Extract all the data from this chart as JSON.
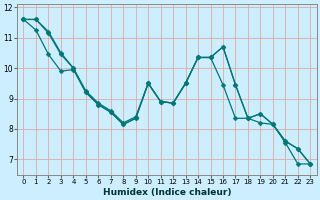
{
  "xlabel": "Humidex (Indice chaleur)",
  "bg_color": "#cceeff",
  "grid_color": "#aaddcc",
  "line_color": "#007777",
  "markersize": 2.5,
  "linewidth": 0.9,
  "xlim": [
    -0.5,
    23.5
  ],
  "ylim": [
    6.5,
    12.1
  ],
  "yticks": [
    7,
    8,
    9,
    10,
    11,
    12
  ],
  "xticks": [
    0,
    1,
    2,
    3,
    4,
    5,
    6,
    7,
    8,
    9,
    10,
    11,
    12,
    13,
    14,
    15,
    16,
    17,
    18,
    19,
    20,
    21,
    22,
    23
  ],
  "line1_x": [
    0,
    1,
    2,
    3,
    4,
    5,
    6,
    7,
    8,
    9,
    10,
    11,
    12,
    13,
    14,
    15,
    16,
    17,
    18,
    19,
    20,
    21,
    22,
    23
  ],
  "line1_y": [
    11.6,
    11.6,
    11.15,
    10.45,
    10.0,
    9.2,
    8.8,
    8.55,
    8.15,
    8.35,
    9.5,
    8.9,
    8.85,
    9.5,
    10.35,
    10.35,
    10.7,
    9.45,
    8.35,
    8.5,
    8.15,
    7.6,
    7.35,
    6.85
  ],
  "line2_x": [
    0,
    1,
    2,
    3,
    4,
    5,
    6,
    7,
    8,
    9,
    10,
    11,
    12,
    13,
    14,
    15,
    16,
    17,
    18,
    19,
    20,
    21,
    22,
    23
  ],
  "line2_y": [
    11.6,
    11.6,
    11.2,
    10.5,
    10.0,
    9.25,
    8.85,
    8.6,
    8.2,
    8.4,
    9.5,
    8.9,
    8.85,
    9.5,
    10.35,
    10.35,
    10.7,
    9.45,
    8.35,
    8.5,
    8.15,
    7.6,
    7.35,
    6.85
  ],
  "line3_x": [
    0,
    1,
    2,
    3,
    4,
    5,
    6,
    7,
    8,
    9,
    10,
    11,
    12,
    13,
    14,
    15,
    16,
    17,
    18,
    19,
    20,
    21,
    22,
    23
  ],
  "line3_y": [
    11.6,
    11.25,
    10.45,
    9.9,
    9.95,
    9.2,
    8.8,
    8.55,
    8.15,
    8.35,
    9.5,
    8.9,
    8.85,
    9.5,
    10.35,
    10.35,
    9.45,
    8.35,
    8.35,
    8.2,
    8.15,
    7.55,
    6.85,
    6.85
  ]
}
